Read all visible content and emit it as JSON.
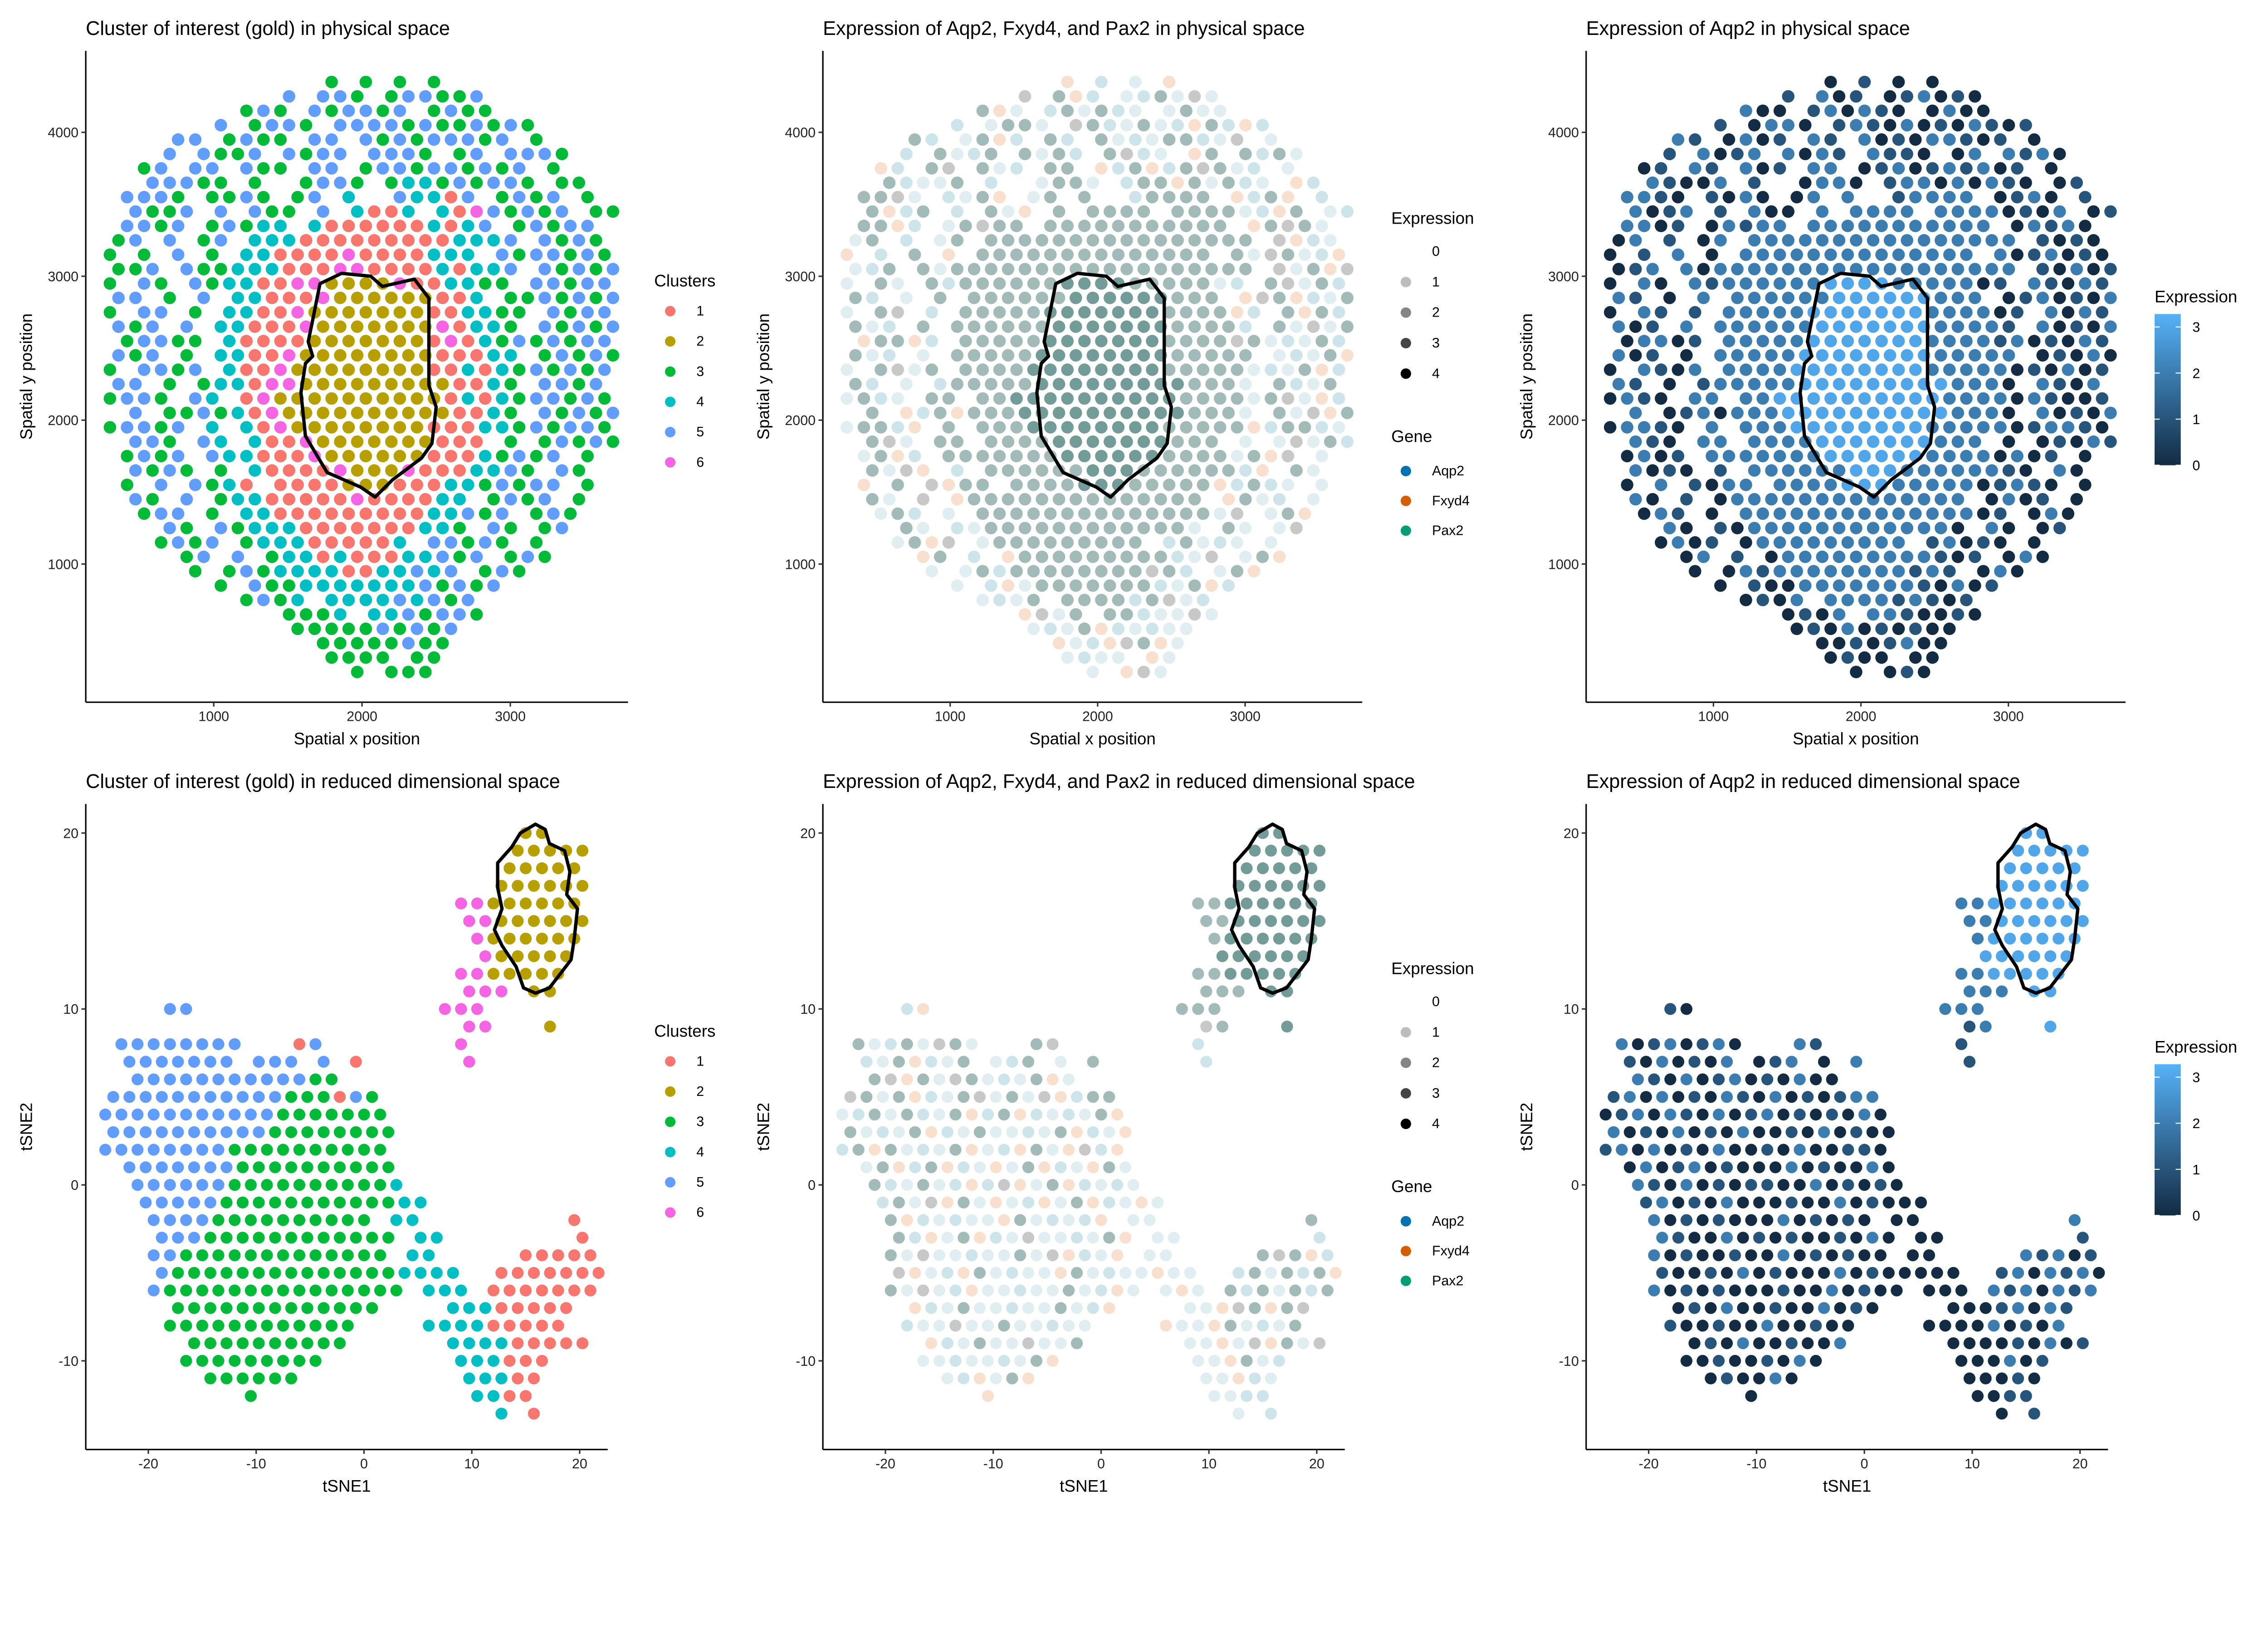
{
  "cluster_colors": {
    "1": "#F8766D",
    "2": "#B79F00",
    "3": "#00BA38",
    "4": "#00BFC4",
    "5": "#619CFF",
    "6": "#F564E3"
  },
  "gene_colors": {
    "Aqp2": "#0072B2",
    "Fxyd4": "#D55E00",
    "Pax2": "#009E73"
  },
  "expression_key_colors": {
    "0": "#ffffff",
    "1": "#bdbdbd",
    "2": "#858585",
    "3": "#454545",
    "4": "#000000"
  },
  "aqp2_gradient": {
    "low": "#132B43",
    "high": "#56B1F7"
  },
  "spatial_spots": {
    "x0": 300,
    "dx": 115,
    "y0": 4350,
    "dy": -100,
    "odd_row_shift": 57.5,
    "clusters": [
      "..........|...3.3.3.3|..........",
      "..........|5.553.3553|35........",
      "........35|3.535535.3|533.......",
      "......5.35|53.5555353|35353.....",
      "....55.353|3.55.53535|5535.3....",
      "...5.5335.|5355.5553.|35.5553...",
      "..35.55.53|3.55.35535|53535.3...",
      "..55533.3.|.3553.3443|53553.33..",
      ".5553.3353|.35.4..544|15.3535.3.",
      ".5335.5.53|3.5.4114.4|1653535.33",
      ".5535.3534|4.41111114|145.35355.",
      "35.5.35.44|4111111111|4445.5353.",
      "3.3.5.3.44|1111611114|44.5355353",
      "335.533444|1116611114|1445.53535",
      "3.53.53441|1662222611|4433.55355",
      "55.3.5.441|1162222221|14.3353535",
      "3.55.3.441|1622222221|14433.5355",
      "535.5.4411|1622222226|1443.53535",
      ".35533.411|1122222221|6143535355",
      "535.3.4411|6222222221|1144.35353",
      "3.5535.411|6222222221|1414353535",
      "55.3.34416|6222222222|1143.5535.",
      "3553.54.16|2222222222|1414355353",
      ".5.3353416|2222222222|1143.53535",
      "35535.4.41|6222222221|1144353553",
      ".553.54.41|1622222221|11.3.35353",
      ".3535.5441|1162222221|1143535.3.",
      ".5353.3.41|1116222611|14453.53..",
      ".3.5.5341.|1111222111|4435355.3.",
      ".53.5.3441|1111611114|4.3535.3..",
      "..355.3.44|1111111114|4535.353..",
      "...53.5344|4111111144|3.53.35...",
      "...3535.34|44111114.5|5353.3....",
      "....35.5.3|4414111445|35.353....",
      ".....3.353|4444114454|5.353.....",
      "......3.53|3444444453|535.......",
      "........35|34.4444545|35........",
      "..........|3334.44535|53........",
      "..........|.333335353|5.........",
      "..........|..33333533|..........",
      "..........|...3333.33|..........",
      "..........|....3.333.|.........."
    ],
    "aqp2_expression": [
      "..........|...0.1.0.0|..........",
      "..........|1.201.0120|10........",
      "........20|0.120210.0|200.......",
      "......1.02|20.1210201|02101.....",
      "....21.020|1.21.20102|2101.0....",
      "...1.2012.|2021.2110.|02.2120...",
      "..01.21.20|1.22.01201|21201.0...",
      "..21002.1.|.0220.1220|20210.01..",
      ".2210.1020|.02.2..122|22.0120.1.",
      ".2012.1.20|0.2.2222.2|2220102.01",
      ".2201.0212|2.22222222|222.02120.",
      "02.1.02.22|2222222222|2222.1010.",
      "0.1.2.0.22|2222222222|22.2012010",
      "012.202222|2222222222|2222.10201",
      "0.20.21222|2223333222|2201.21021",
      "21.0.2.222|2223333332|22.0120102",
      "0.21.1.222|2233333332|22201.2021",
      "201.2.2222|2233333332|2221.20102",
      ".02201.222|2233333332|2221201021",
      "201.0.2222|2333333332|2222.01020",
      "0.2102.222|2333333332|2222010201",
      "21.0.12222|2333333333|2220.2102.",
      "0210.22.22|3333333333|2222021001",
      ".2.0120222|3333333333|2220.20102",
      "02210.2.22|2333333332|2222012210",
      ".210.22.22|2233333332|22.0.01021",
      ".0201.2222|2223333332|2220201.0.",
      ".2010.1.22|2222333222|22210.20..",
      ".0.2.1022.|2222333222|2201210.0.",
      ".20.1.0222|2222222222|2.0201.0..",
      "..021.0.22|2222222222|2201.020..",
      "...20.1022|2222222222|0.20.01...",
      "...0201.02|22222222.1|2010.0....",
      "....02.1.0|2222222221|01.020....",
      ".....0.021|2222222212|1.020.....",
      "......0.10|0222222210|201.......",
      "........01|02.2222121|01........",
      "..........|0102.22100|10........",
      "..........|.010201010|0.........",
      "..........|..00101200|..........",
      "..........|...0100.00|..........",
      "..........|....0.010.|.........."
    ]
  },
  "spatial_outline": [
    [
      1716,
      2949
    ],
    [
      1863,
      3020
    ],
    [
      2059,
      3000
    ],
    [
      2137,
      2929
    ],
    [
      2353,
      2980
    ],
    [
      2451,
      2848
    ],
    [
      2451,
      2242
    ],
    [
      2500,
      2091
    ],
    [
      2471,
      1838
    ],
    [
      2402,
      1737
    ],
    [
      2206,
      1586
    ],
    [
      2088,
      1465
    ],
    [
      1990,
      1535
    ],
    [
      1765,
      1636
    ],
    [
      1618,
      1889
    ],
    [
      1588,
      2192
    ],
    [
      1618,
      2394
    ],
    [
      1667,
      2444
    ],
    [
      1637,
      2545
    ],
    [
      1667,
      2697
    ]
  ],
  "tsne_cells": {
    "x0": -24,
    "dx": 1.5,
    "y0": 20,
    "dy": -1,
    "odd_row_shift": 0.75,
    "clusters": [
      "..........|..........|......22...",
      "..........|..........|.....22222.",
      "..........|..........|.....22222.",
      "..........|..........|....222222.",
      "..........|..........|..66222222.",
      "..........|..........|..66222222.",
      "..........|..........|...6222222.",
      "..........|..........|...622222..",
      "..........|..........|..6622222..",
      "..........|..........|..666.22...",
      "....55....|..........|.666.......",
      "..........|..........|..66...2...",
      ".55555555.|..15......|..6........",
      ".5555555.5|55.5.1....|..6........",
      "..55555555|55533.....|...........",
      "5555555555|5333153...|...........",
      "5555555555|53333333..|...........",
      "5555555555|33333333..|...........",
      "5555555533|33333333..|...........",
      ".555555533|33333333..|...........",
      "..55555533|333333334.|...........",
      "..55555333|3333333344|...........",
      "...5555333|3333333.44|.........1.",
      "...5553333|33333333.4|4........1.",
      "...5533333|33333333.4|4.....11111",
      "...5333333|3333333344|44..1111111",
      "...5333333|333333333.|444.1111111",
      "....333333|3333333...|.44411111..",
      "....333333|333333....|444411111..",
      ".....33333|33333.....|.444411111.",
      ".....33333|3333......|..444111...",
      "......3333|33........|..44411....",
      ".........3|..........|...4411....",
      "..........|..........|....4.1...."
    ],
    "aqp2_expression": [
      "..........|..........|......33...",
      "..........|..........|.....33333.",
      "..........|..........|.....33333.",
      "..........|..........|....333333.",
      "..........|..........|..22333333.",
      "..........|..........|..22333333.",
      "..........|..........|...2333333.",
      "..........|..........|...333333..",
      "..........|..........|..2233333..",
      "..........|..........|..222.33...",
      "....10....|..........|.222.......",
      "..........|..........|..12...3...",
      ".20120120.|..21......|..1........",
      ".1020102.0|12.0.2....|..1........",
      "..21020120|10200.....|...........",
      "1202010210|2010122...|...........",
      "0120210201|20101020..|...........",
      "2010201020|01020100..|...........",
      "1202010200|10200110..|...........",
      ".020120100|02010020..|...........",
      "..21020101|100201010.|...........",
      "..12010200|0100201000|...........",
      "...2010100|0201010.00|.........2.",
      "...2100201|01001020.0|0........1.",
      "...2010010|02010100.0|0.....21201",
      "...1001020|1000201000|00..1202120",
      "...2010100|010020100.|000.2120212",
      "....010200|1002010...|.00012021..",
      "....100100|200100....|000020102..",
      ".....01020|01002.....|.000010201.",
      ".....00100|1020......|..000201...",
      "......0100|20........|..00010....",
      ".........0|..........|...0011....",
      "..........|..........|....0.1...."
    ]
  },
  "tsne_outline": [
    [
      12.4,
      18.3
    ],
    [
      13.7,
      19.2
    ],
    [
      14.5,
      20.0
    ],
    [
      15.9,
      20.5
    ],
    [
      16.8,
      20.2
    ],
    [
      17.2,
      19.4
    ],
    [
      18.6,
      19.0
    ],
    [
      19.1,
      17.8
    ],
    [
      18.8,
      16.5
    ],
    [
      19.8,
      15.7
    ],
    [
      19.5,
      14.0
    ],
    [
      19.2,
      12.8
    ],
    [
      18.2,
      12.0
    ],
    [
      17.2,
      11.2
    ],
    [
      15.9,
      10.9
    ],
    [
      14.8,
      11.2
    ],
    [
      14.1,
      12.4
    ],
    [
      12.8,
      13.6
    ],
    [
      12.1,
      14.5
    ],
    [
      12.8,
      15.7
    ],
    [
      12.4,
      16.9
    ]
  ],
  "chart_data": [
    {
      "type": "scatter",
      "title": "Cluster of interest (gold) in physical space",
      "xlabel": "Spatial x position",
      "ylabel": "Spatial y position",
      "xlim": [
        137,
        3794
      ],
      "ylim": [
        40,
        4566
      ],
      "xticks": [
        1000,
        2000,
        3000
      ],
      "yticks": [
        1000,
        2000,
        3000,
        4000
      ],
      "points": "spatial_spots",
      "outline": "spatial_outline",
      "color_by": "cluster",
      "grid": false,
      "legend": {
        "kind": "cluster",
        "position": "right",
        "title": "Clusters",
        "items": [
          "1",
          "2",
          "3",
          "4",
          "5",
          "6"
        ]
      }
    },
    {
      "type": "scatter",
      "title": "Expression of Aqp2, Fxyd4, and Pax2 in physical space",
      "xlabel": "Spatial x position",
      "ylabel": "Spatial y position",
      "xlim": [
        137,
        3794
      ],
      "ylim": [
        40,
        4566
      ],
      "xticks": [
        1000,
        2000,
        3000
      ],
      "yticks": [
        1000,
        2000,
        3000,
        4000
      ],
      "points": "spatial_spots",
      "outline": "spatial_outline",
      "color_by": "genes",
      "grid": false,
      "legend": {
        "kind": "genes",
        "position": "right",
        "expression_title": "Expression",
        "expression_levels": [
          "0",
          "1",
          "2",
          "3",
          "4"
        ],
        "gene_title": "Gene",
        "genes": [
          "Aqp2",
          "Fxyd4",
          "Pax2"
        ]
      }
    },
    {
      "type": "scatter",
      "title": "Expression of Aqp2 in physical space",
      "xlabel": "Spatial x position",
      "ylabel": "Spatial y position",
      "xlim": [
        137,
        3794
      ],
      "ylim": [
        40,
        4566
      ],
      "xticks": [
        1000,
        2000,
        3000
      ],
      "yticks": [
        1000,
        2000,
        3000,
        4000
      ],
      "points": "spatial_spots",
      "outline": "spatial_outline",
      "color_by": "aqp2",
      "grid": false,
      "legend": {
        "kind": "colorbar",
        "position": "right",
        "title": "Expression",
        "ticks": [
          0,
          1,
          2,
          3
        ],
        "range": [
          0,
          3.28
        ]
      }
    },
    {
      "type": "scatter",
      "title": "Cluster of interest (gold) in reduced dimensional space",
      "xlabel": "tSNE1",
      "ylabel": "tSNE2",
      "xlim": [
        -25.8,
        22.6
      ],
      "ylim": [
        -15.04,
        21.65
      ],
      "xticks": [
        -20,
        -10,
        0,
        10,
        20
      ],
      "yticks": [
        -10,
        0,
        10,
        20
      ],
      "points": "tsne_cells",
      "outline": "tsne_outline",
      "color_by": "cluster",
      "grid": false,
      "legend": {
        "kind": "cluster",
        "position": "right",
        "title": "Clusters",
        "items": [
          "1",
          "2",
          "3",
          "4",
          "5",
          "6"
        ]
      }
    },
    {
      "type": "scatter",
      "title": "Expression of Aqp2, Fxyd4, and Pax2 in reduced dimensional space",
      "xlabel": "tSNE1",
      "ylabel": "tSNE2",
      "xlim": [
        -25.8,
        22.6
      ],
      "ylim": [
        -15.04,
        21.65
      ],
      "xticks": [
        -20,
        -10,
        0,
        10,
        20
      ],
      "yticks": [
        -10,
        0,
        10,
        20
      ],
      "points": "tsne_cells",
      "outline": "tsne_outline",
      "color_by": "genes",
      "grid": false,
      "legend": {
        "kind": "genes",
        "position": "right",
        "expression_title": "Expression",
        "expression_levels": [
          "0",
          "1",
          "2",
          "3",
          "4"
        ],
        "gene_title": "Gene",
        "genes": [
          "Aqp2",
          "Fxyd4",
          "Pax2"
        ]
      }
    },
    {
      "type": "scatter",
      "title": "Expression of Aqp2 in reduced dimensional space",
      "xlabel": "tSNE1",
      "ylabel": "tSNE2",
      "xlim": [
        -25.8,
        22.6
      ],
      "ylim": [
        -15.04,
        21.65
      ],
      "xticks": [
        -20,
        -10,
        0,
        10,
        20
      ],
      "yticks": [
        -10,
        0,
        10,
        20
      ],
      "points": "tsne_cells",
      "outline": "tsne_outline",
      "color_by": "aqp2",
      "grid": false,
      "legend": {
        "kind": "colorbar",
        "position": "right",
        "title": "Expression",
        "ticks": [
          0,
          1,
          2,
          3
        ],
        "range": [
          0,
          3.28
        ]
      }
    }
  ]
}
